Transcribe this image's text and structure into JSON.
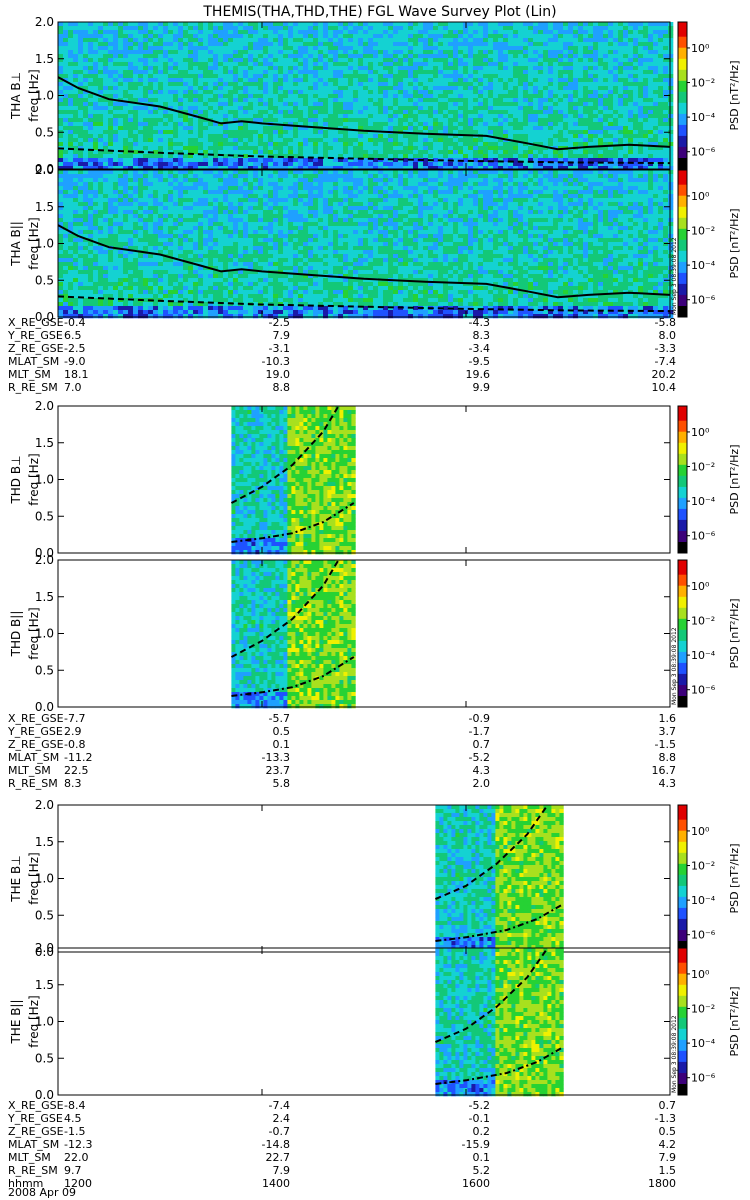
{
  "title": "THEMIS(THA,THD,THE) FGL Wave Survey Plot (Lin)",
  "date_label": "2008 Apr 09",
  "stamp": "Mon Sep  3 08:39:08 2012",
  "colorbar": {
    "label": "PSD [nT²/Hz]",
    "tick_labels": [
      "10⁰",
      "10⁻²",
      "10⁻⁴",
      "10⁻⁶"
    ],
    "log_range": [
      -7,
      1.5
    ],
    "tick_exponents": [
      0,
      -2,
      -4,
      -6
    ],
    "colors": [
      "#000000",
      "#3c007a",
      "#1a1aa8",
      "#1f52ff",
      "#1fa0ff",
      "#14d2d2",
      "#13c878",
      "#26d234",
      "#a8e01e",
      "#f0f000",
      "#ffb000",
      "#ff5000",
      "#e00000",
      "#a00000"
    ]
  },
  "chart_data": [
    {
      "type": "heatmap",
      "panel": "THA B⊥",
      "ylabel": "freq [Hz]",
      "ylim": [
        0,
        2.0
      ],
      "y_ticks": [
        "0.0",
        "0.5",
        "1.0",
        "1.5",
        "2.0"
      ],
      "xlim": [
        1200,
        1800
      ],
      "data_coverage": [
        [
          1200,
          1800
        ]
      ],
      "solid_line": {
        "x": [
          1200,
          1220,
          1250,
          1300,
          1340,
          1360,
          1380,
          1400,
          1440,
          1500,
          1560,
          1620,
          1660,
          1690,
          1720,
          1760,
          1800
        ],
        "y": [
          1.25,
          1.1,
          0.95,
          0.85,
          0.7,
          0.62,
          0.65,
          0.62,
          0.58,
          0.52,
          0.48,
          0.45,
          0.35,
          0.27,
          0.3,
          0.33,
          0.3
        ]
      },
      "dashed_line": {
        "x": [
          1200,
          1300,
          1400,
          1500,
          1600,
          1700,
          1800
        ],
        "y": [
          0.28,
          0.22,
          0.17,
          0.14,
          0.11,
          0.09,
          0.08
        ]
      }
    },
    {
      "type": "heatmap",
      "panel": "THA B||",
      "ylabel": "freq [Hz]",
      "ylim": [
        0,
        2.0
      ],
      "y_ticks": [
        "0.0",
        "0.5",
        "1.0",
        "1.5",
        "2.0"
      ],
      "xlim": [
        1200,
        1800
      ],
      "data_coverage": [
        [
          1200,
          1800
        ]
      ],
      "solid_line": {
        "x": [
          1200,
          1220,
          1250,
          1300,
          1340,
          1360,
          1380,
          1400,
          1440,
          1500,
          1560,
          1620,
          1660,
          1690,
          1720,
          1760,
          1800
        ],
        "y": [
          1.25,
          1.1,
          0.95,
          0.85,
          0.7,
          0.62,
          0.65,
          0.62,
          0.58,
          0.52,
          0.48,
          0.45,
          0.35,
          0.27,
          0.3,
          0.33,
          0.3
        ]
      },
      "dashed_line": {
        "x": [
          1200,
          1300,
          1400,
          1500,
          1600,
          1700,
          1800
        ],
        "y": [
          0.28,
          0.22,
          0.17,
          0.14,
          0.11,
          0.09,
          0.08
        ]
      }
    },
    {
      "type": "heatmap",
      "panel": "THD B⊥",
      "ylabel": "freq [Hz]",
      "ylim": [
        0,
        2.0
      ],
      "y_ticks": [
        "0.0",
        "0.5",
        "1.0",
        "1.5",
        "2.0"
      ],
      "xlim": [
        1200,
        1800
      ],
      "data_coverage": [
        [
          1370,
          1490
        ]
      ],
      "dashed_line": {
        "x": [
          1370,
          1400,
          1430,
          1460,
          1475
        ],
        "y": [
          0.68,
          0.9,
          1.2,
          1.65,
          2.0
        ]
      },
      "dashdot_line": {
        "x": [
          1370,
          1400,
          1430,
          1460,
          1490
        ],
        "y": [
          0.15,
          0.2,
          0.27,
          0.42,
          0.68
        ]
      }
    },
    {
      "type": "heatmap",
      "panel": "THD B||",
      "ylabel": "freq [Hz]",
      "ylim": [
        0,
        2.0
      ],
      "y_ticks": [
        "0.0",
        "0.5",
        "1.0",
        "1.5",
        "2.0"
      ],
      "xlim": [
        1200,
        1800
      ],
      "data_coverage": [
        [
          1370,
          1490
        ]
      ],
      "dashed_line": {
        "x": [
          1370,
          1400,
          1430,
          1460,
          1475
        ],
        "y": [
          0.68,
          0.9,
          1.2,
          1.65,
          2.0
        ]
      },
      "dashdot_line": {
        "x": [
          1370,
          1400,
          1430,
          1460,
          1490
        ],
        "y": [
          0.15,
          0.2,
          0.27,
          0.42,
          0.68
        ]
      }
    },
    {
      "type": "heatmap",
      "panel": "THE B⊥",
      "ylabel": "freq [Hz]",
      "ylim": [
        0,
        2.0
      ],
      "y_ticks": [
        "0.0",
        "0.5",
        "1.0",
        "1.5",
        "2.0"
      ],
      "xlim": [
        1200,
        1800
      ],
      "data_coverage": [
        [
          1570,
          1695
        ]
      ],
      "dashed_line": {
        "x": [
          1570,
          1600,
          1630,
          1660,
          1680
        ],
        "y": [
          0.72,
          0.9,
          1.2,
          1.6,
          2.0
        ]
      },
      "dashdot_line": {
        "x": [
          1570,
          1600,
          1640,
          1670,
          1695
        ],
        "y": [
          0.15,
          0.2,
          0.3,
          0.45,
          0.65
        ]
      }
    },
    {
      "type": "heatmap",
      "panel": "THE B||",
      "ylabel": "freq [Hz]",
      "ylim": [
        0,
        2.0
      ],
      "y_ticks": [
        "0.0",
        "0.5",
        "1.0",
        "1.5",
        "2.0"
      ],
      "xlim": [
        1200,
        1800
      ],
      "data_coverage": [
        [
          1570,
          1695
        ]
      ],
      "dashed_line": {
        "x": [
          1570,
          1600,
          1630,
          1660,
          1680
        ],
        "y": [
          0.72,
          0.9,
          1.2,
          1.6,
          2.0
        ]
      },
      "dashdot_line": {
        "x": [
          1570,
          1600,
          1640,
          1670,
          1695
        ],
        "y": [
          0.15,
          0.2,
          0.3,
          0.45,
          0.65
        ]
      }
    }
  ],
  "probes": [
    {
      "name": "THA",
      "row_labels": [
        "B⊥",
        "B||"
      ]
    },
    {
      "name": "THD",
      "row_labels": [
        "B⊥",
        "B||"
      ]
    },
    {
      "name": "THE",
      "row_labels": [
        "B⊥",
        "B||"
      ]
    }
  ],
  "ephemeris": [
    {
      "labels": [
        "X_RE_GSE",
        "Y_RE_GSE",
        "Z_RE_GSE",
        "MLAT_SM",
        "MLT_SM",
        "R_RE_SM"
      ],
      "columns": [
        [
          "-0.4",
          "6.5",
          "-2.5",
          "-9.0",
          "18.1",
          "7.0"
        ],
        [
          "-2.5",
          "7.9",
          "-3.1",
          "-10.3",
          "19.0",
          "8.8"
        ],
        [
          "-4.3",
          "8.3",
          "-3.4",
          "-9.5",
          "19.6",
          "9.9"
        ],
        [
          "-5.8",
          "8.0",
          "-3.3",
          "-7.4",
          "20.2",
          "10.4"
        ]
      ]
    },
    {
      "labels": [
        "X_RE_GSE",
        "Y_RE_GSE",
        "Z_RE_GSE",
        "MLAT_SM",
        "MLT_SM",
        "R_RE_SM"
      ],
      "columns": [
        [
          "-7.7",
          "2.9",
          "-0.8",
          "-11.2",
          "22.5",
          "8.3"
        ],
        [
          "-5.7",
          "0.5",
          "0.1",
          "-13.3",
          "23.7",
          "5.8"
        ],
        [
          "-0.9",
          "-1.7",
          "0.7",
          "-5.2",
          "4.3",
          "2.0"
        ],
        [
          "1.6",
          "3.7",
          "-1.5",
          "8.8",
          "16.7",
          "4.3"
        ]
      ]
    },
    {
      "labels": [
        "X_RE_GSE",
        "Y_RE_GSE",
        "Z_RE_GSE",
        "MLAT_SM",
        "MLT_SM",
        "R_RE_SM",
        "hhmm"
      ],
      "columns": [
        [
          "-8.4",
          "4.5",
          "-1.5",
          "-12.3",
          "22.0",
          "9.7",
          "1200"
        ],
        [
          "-7.4",
          "2.4",
          "-0.7",
          "-14.8",
          "22.7",
          "7.9",
          "1400"
        ],
        [
          "-5.2",
          "-0.1",
          "0.2",
          "-15.9",
          "0.1",
          "5.2",
          "1600"
        ],
        [
          "0.7",
          "-1.3",
          "0.5",
          "4.2",
          "7.9",
          "1.5",
          "1800"
        ]
      ]
    }
  ]
}
